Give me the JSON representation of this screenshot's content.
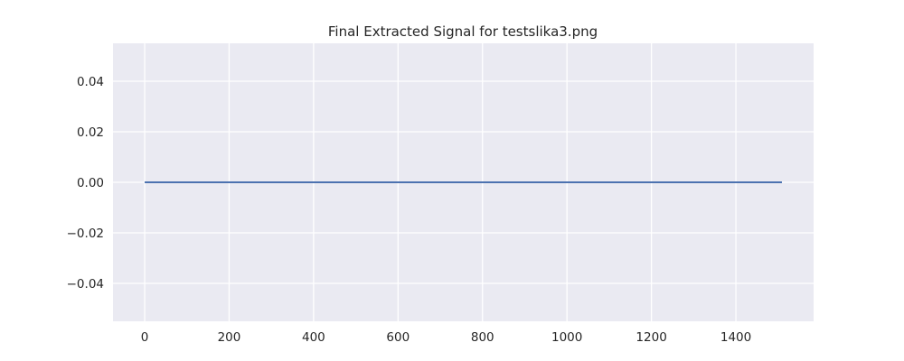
{
  "chart_data": {
    "type": "line",
    "title": "Final Extracted Signal for testslika3.png",
    "xlabel": "",
    "ylabel": "",
    "xlim": [
      -75,
      1584
    ],
    "ylim": [
      -0.055,
      0.055
    ],
    "x_ticks": [
      0,
      200,
      400,
      600,
      800,
      1000,
      1200,
      1400
    ],
    "x_tick_labels": [
      "0",
      "200",
      "400",
      "600",
      "800",
      "1000",
      "1200",
      "1400"
    ],
    "y_ticks": [
      0.04,
      0.02,
      0.0,
      -0.02,
      -0.04
    ],
    "y_tick_labels": [
      "0.04",
      "0.02",
      "0.00",
      "−0.02",
      "−0.04"
    ],
    "grid": true,
    "style": {
      "plot_background": "#eaeaf2",
      "grid_color": "#ffffff",
      "line_color": "#4c72b0"
    },
    "series": [
      {
        "x": [
          0,
          1509
        ],
        "values": [
          0,
          0
        ]
      }
    ]
  }
}
